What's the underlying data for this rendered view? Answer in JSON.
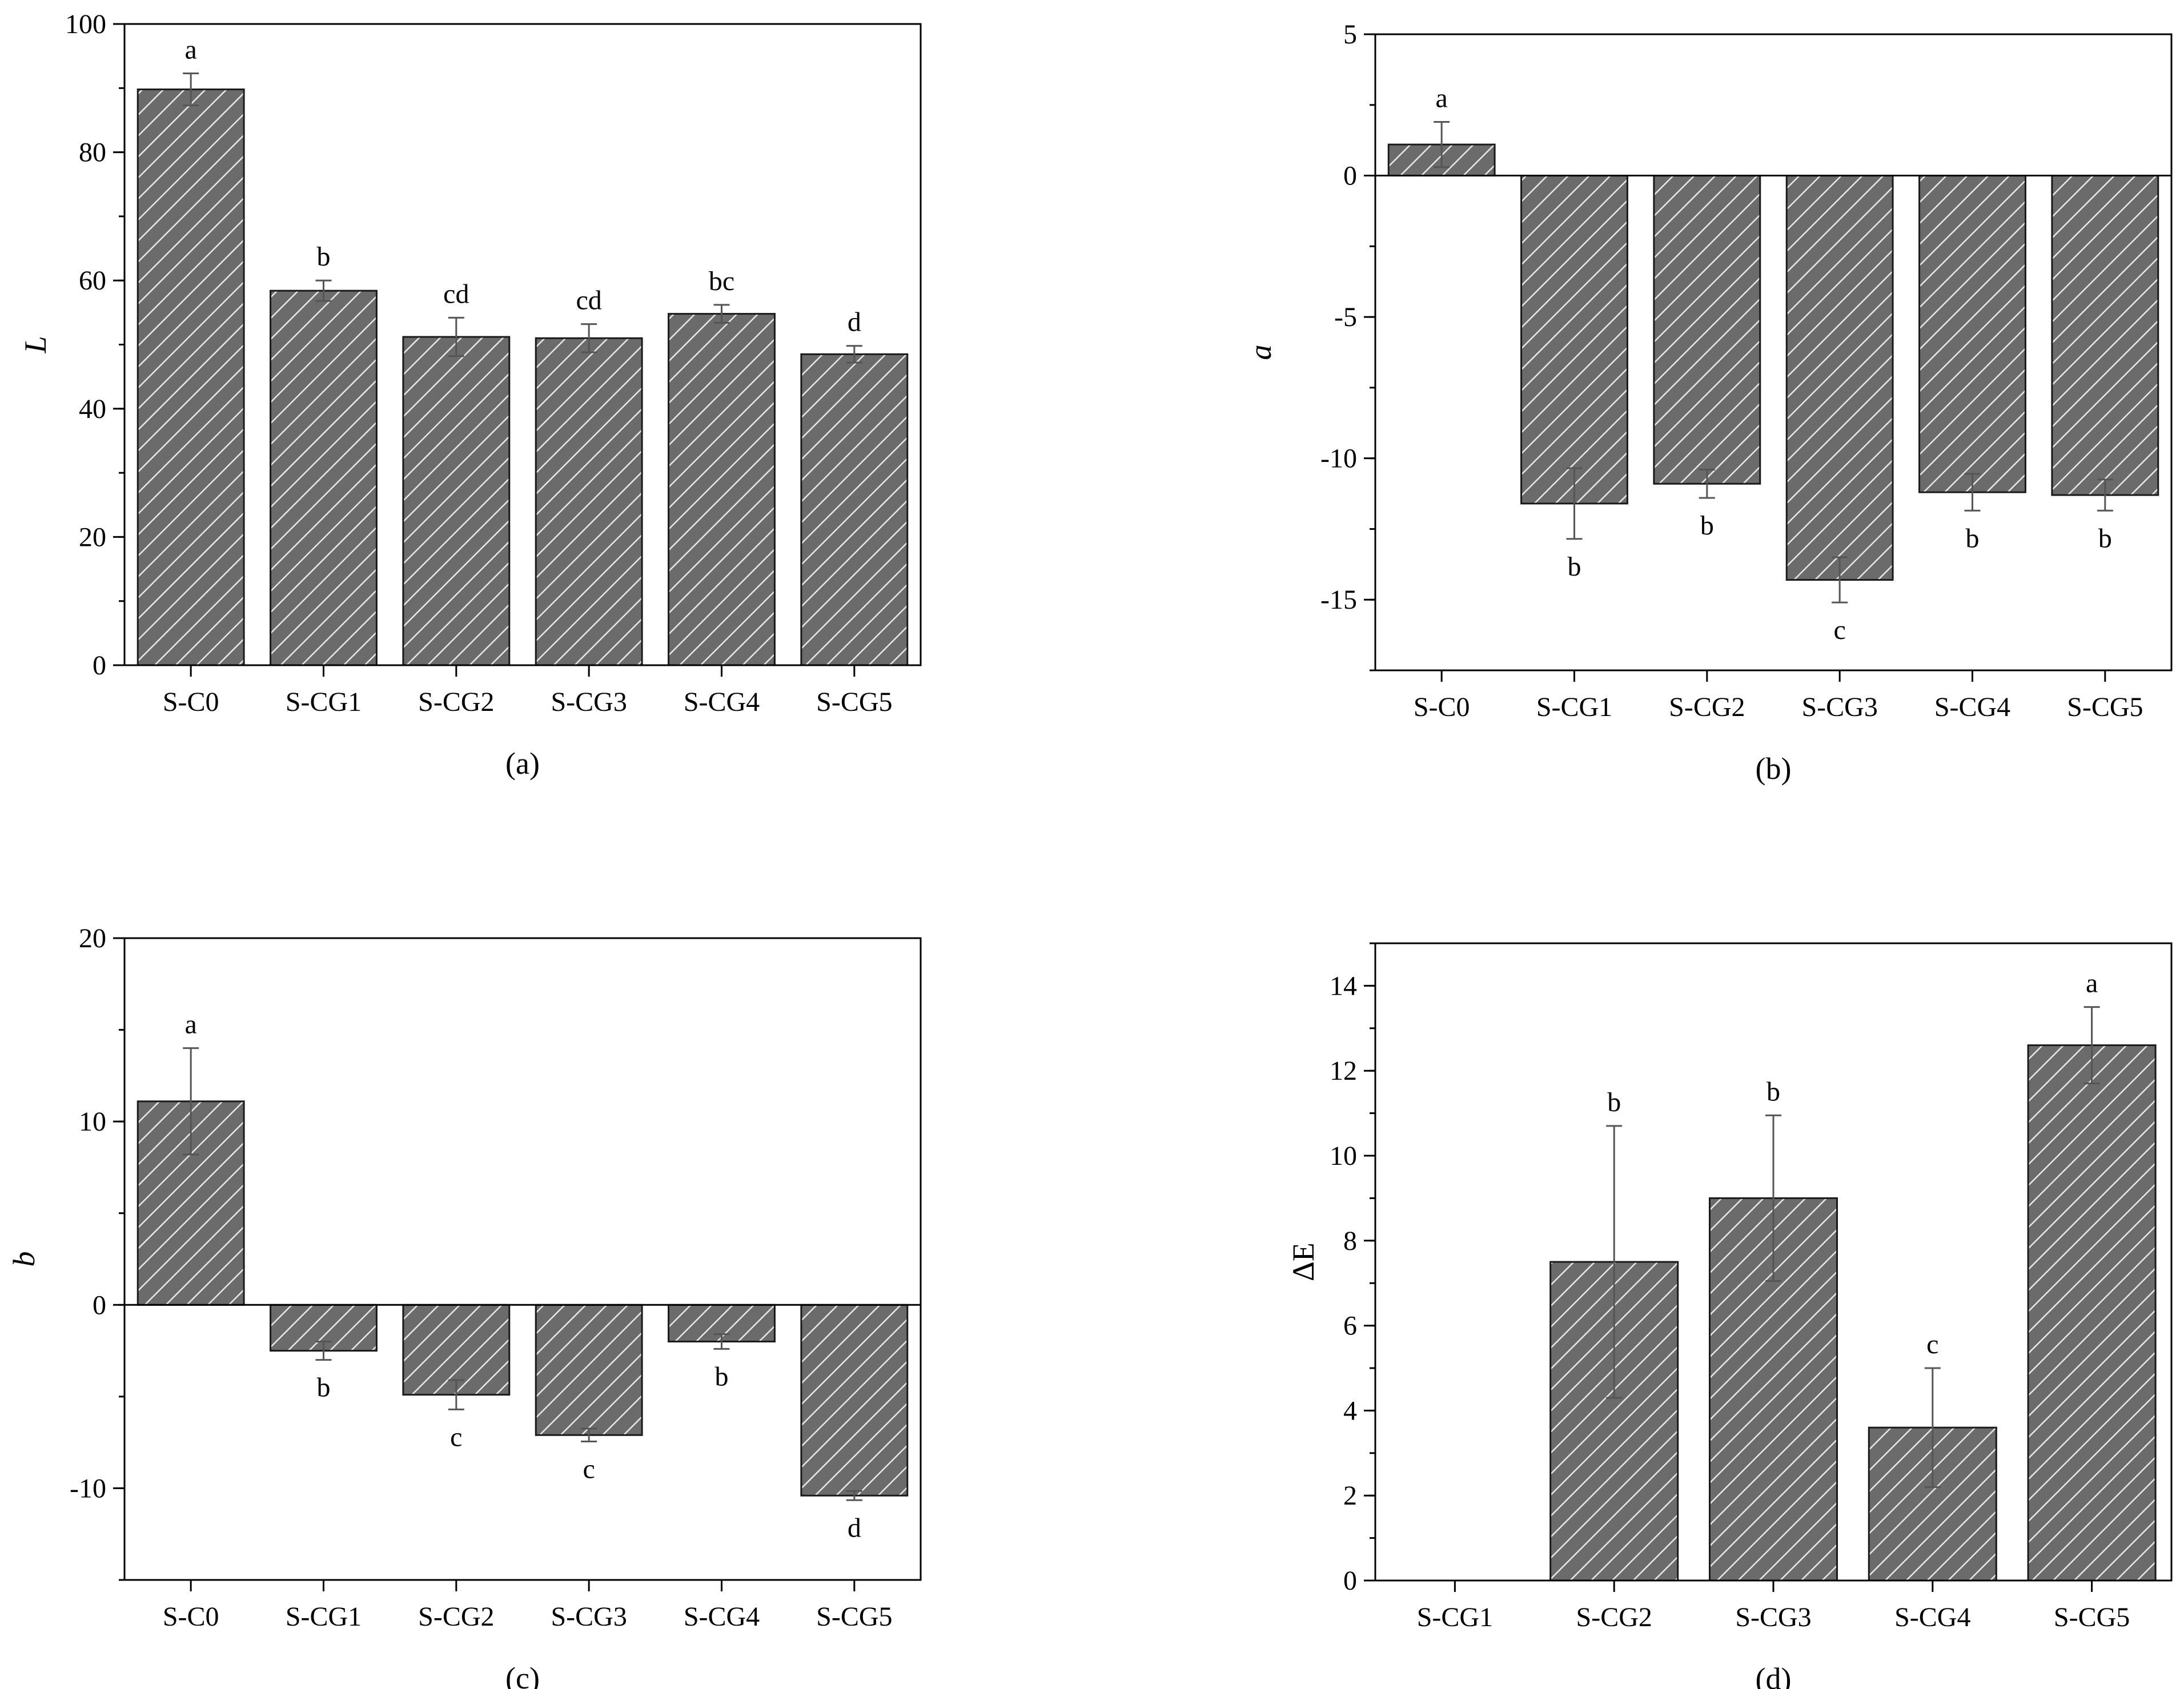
{
  "colors": {
    "bar_fill": "#6b6b6b",
    "hatch_stroke": "#e8e8e8",
    "bar_outline": "#1a1a1a",
    "axis": "#000000",
    "error_bar": "#555555"
  },
  "chart_data": [
    {
      "id": "a",
      "type": "bar",
      "caption": "(a)",
      "ylabel": "L",
      "ylabel_italic": true,
      "categories": [
        "S-C0",
        "S-CG1",
        "S-CG2",
        "S-CG3",
        "S-CG4",
        "S-CG5"
      ],
      "values": [
        89.8,
        58.4,
        51.2,
        51.0,
        54.8,
        48.5
      ],
      "errors": [
        2.5,
        1.6,
        3.0,
        2.2,
        1.4,
        1.3
      ],
      "significance": [
        "a",
        "b",
        "cd",
        "cd",
        "bc",
        "d"
      ],
      "ylim": [
        0,
        100
      ],
      "yticks": [
        0,
        20,
        40,
        60,
        80,
        100
      ],
      "y_minor_step": 10
    },
    {
      "id": "b",
      "type": "bar",
      "caption": "(b)",
      "ylabel": "a",
      "ylabel_italic": true,
      "categories": [
        "S-C0",
        "S-CG1",
        "S-CG2",
        "S-CG3",
        "S-CG4",
        "S-CG5"
      ],
      "values": [
        1.1,
        -11.6,
        -10.9,
        -14.3,
        -11.2,
        -11.3
      ],
      "errors": [
        0.8,
        1.25,
        0.5,
        0.8,
        0.65,
        0.55
      ],
      "significance": [
        "a",
        "b",
        "b",
        "c",
        "b",
        "b"
      ],
      "ylim": [
        -17.5,
        5
      ],
      "yticks": [
        -15,
        -10,
        -5,
        0,
        5
      ],
      "y_minor_step": 2.5
    },
    {
      "id": "c",
      "type": "bar",
      "caption": "(c)",
      "ylabel": "b",
      "ylabel_italic": true,
      "categories": [
        "S-C0",
        "S-CG1",
        "S-CG2",
        "S-CG3",
        "S-CG4",
        "S-CG5"
      ],
      "values": [
        11.1,
        -2.5,
        -4.9,
        -7.1,
        -2.0,
        -10.4
      ],
      "errors": [
        2.9,
        0.5,
        0.8,
        0.35,
        0.4,
        0.25
      ],
      "significance": [
        "a",
        "b",
        "c",
        "c",
        "b",
        "d"
      ],
      "ylim": [
        -15,
        20
      ],
      "yticks": [
        -10,
        0,
        10,
        20
      ],
      "y_minor_step": 5
    },
    {
      "id": "d",
      "type": "bar",
      "caption": "(d)",
      "ylabel": "ΔE",
      "ylabel_italic": false,
      "categories": [
        "S-CG1",
        "S-CG2",
        "S-CG3",
        "S-CG4",
        "S-CG5"
      ],
      "values": [
        0,
        7.5,
        9.0,
        3.6,
        12.6
      ],
      "errors": [
        0,
        3.2,
        1.95,
        1.4,
        0.9
      ],
      "significance": [
        "",
        "b",
        "b",
        "c",
        "a"
      ],
      "ylim": [
        0,
        15
      ],
      "yticks": [
        0,
        2,
        4,
        6,
        8,
        10,
        12,
        14
      ],
      "y_minor_step": 1
    }
  ]
}
